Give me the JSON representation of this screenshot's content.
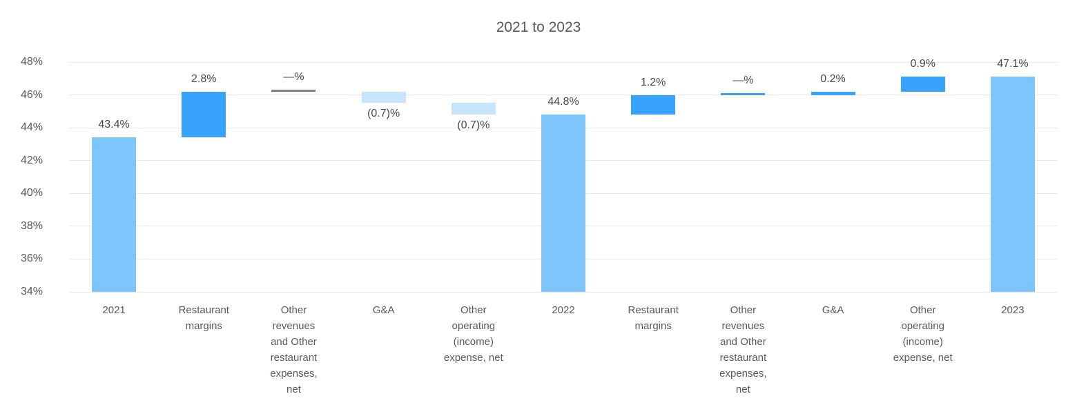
{
  "chart_data": {
    "type": "bar",
    "subtype": "waterfall",
    "title": "2021 to 2023",
    "ylabel": "",
    "xlabel": "",
    "ylim": [
      34,
      48
    ],
    "grid": true,
    "legend": "none",
    "yticks": [
      {
        "value": 48,
        "label": "48%"
      },
      {
        "value": 46,
        "label": "46%"
      },
      {
        "value": 44,
        "label": "44%"
      },
      {
        "value": 42,
        "label": "42%"
      },
      {
        "value": 40,
        "label": "40%"
      },
      {
        "value": 38,
        "label": "38%"
      },
      {
        "value": 36,
        "label": "36%"
      }
    ],
    "baseline_tick": {
      "value": 34,
      "label": "34%"
    },
    "bars": [
      {
        "category": "2021",
        "category_lines": [
          "2021"
        ],
        "value_label": "43.4%",
        "kind": "total",
        "start": 34,
        "end": 43.4,
        "label_pos": "above"
      },
      {
        "category": "Restaurant margins",
        "category_lines": [
          "Restaurant",
          "margins"
        ],
        "value_label": "2.8%",
        "kind": "increase",
        "start": 43.4,
        "end": 46.2,
        "label_pos": "above"
      },
      {
        "category": "Other revenues and Other restaurant expenses, net",
        "category_lines": [
          "Other",
          "revenues",
          "and Other",
          "restaurant",
          "expenses,",
          "net"
        ],
        "value_label": "—%",
        "kind": "zero_gray",
        "start": 46.2,
        "end": 46.2,
        "label_pos": "above"
      },
      {
        "category": "G&A",
        "category_lines": [
          "G&A"
        ],
        "value_label": "(0.7)%",
        "kind": "decrease",
        "start": 46.2,
        "end": 45.5,
        "label_pos": "below"
      },
      {
        "category": "Other operating (income) expense, net",
        "category_lines": [
          "Other",
          "operating",
          "(income)",
          "expense, net"
        ],
        "value_label": "(0.7)%",
        "kind": "decrease",
        "start": 45.5,
        "end": 44.8,
        "label_pos": "below"
      },
      {
        "category": "2022",
        "category_lines": [
          "2022"
        ],
        "value_label": "44.8%",
        "kind": "total",
        "start": 34,
        "end": 44.8,
        "label_pos": "above"
      },
      {
        "category": "Restaurant margins",
        "category_lines": [
          "Restaurant",
          "margins"
        ],
        "value_label": "1.2%",
        "kind": "increase",
        "start": 44.8,
        "end": 46.0,
        "label_pos": "above"
      },
      {
        "category": "Other revenues and Other restaurant expenses, net",
        "category_lines": [
          "Other",
          "revenues",
          "and Other",
          "restaurant",
          "expenses,",
          "net"
        ],
        "value_label": "—%",
        "kind": "zero_blue",
        "start": 46.0,
        "end": 46.0,
        "label_pos": "above"
      },
      {
        "category": "G&A",
        "category_lines": [
          "G&A"
        ],
        "value_label": "0.2%",
        "kind": "increase",
        "start": 46.0,
        "end": 46.2,
        "label_pos": "above"
      },
      {
        "category": "Other operating (income) expense, net",
        "category_lines": [
          "Other",
          "operating",
          "(income)",
          "expense, net"
        ],
        "value_label": "0.9%",
        "kind": "increase",
        "start": 46.2,
        "end": 47.1,
        "label_pos": "above"
      },
      {
        "category": "2023",
        "category_lines": [
          "2023"
        ],
        "value_label": "47.1%",
        "kind": "total",
        "start": 34,
        "end": 47.1,
        "label_pos": "above"
      }
    ],
    "colors": {
      "total": "#7DC5FB",
      "increase": "#38A3FC",
      "decrease": "#C6E4FB",
      "zero_gray": "#808080",
      "zero_blue": "#3F9FDF",
      "grid": "#E9E9E9",
      "title_text": "#595959",
      "axis_text": "#595959",
      "value_text": "#474747"
    }
  }
}
